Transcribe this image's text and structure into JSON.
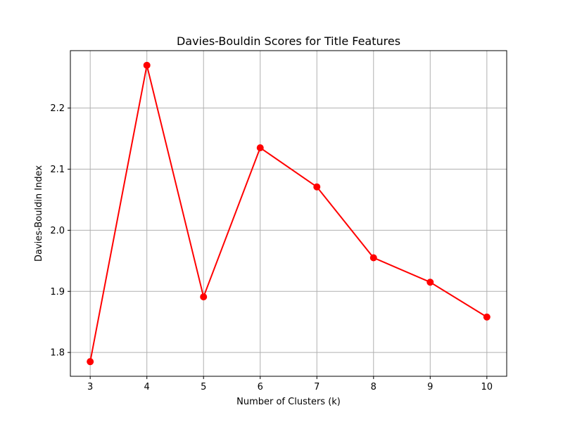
{
  "chart_data": {
    "type": "line",
    "title": "Davies-Bouldin Scores for Title Features",
    "xlabel": "Number of Clusters (k)",
    "ylabel": "Davies-Bouldin Index",
    "x": [
      3,
      4,
      5,
      6,
      7,
      8,
      9,
      10
    ],
    "y": [
      1.785,
      2.27,
      1.891,
      2.135,
      2.071,
      1.955,
      1.915,
      1.858
    ],
    "xlim": [
      2.65,
      10.35
    ],
    "ylim": [
      1.761,
      2.294
    ],
    "xticks": [
      3,
      4,
      5,
      6,
      7,
      8,
      9,
      10
    ],
    "yticks": [
      1.8,
      1.9,
      2.0,
      2.1,
      2.2
    ],
    "ytick_labels": [
      "1.8",
      "1.9",
      "2.0",
      "2.1",
      "2.2"
    ],
    "grid": true,
    "line_color": "#ff0000",
    "marker": "circle"
  }
}
